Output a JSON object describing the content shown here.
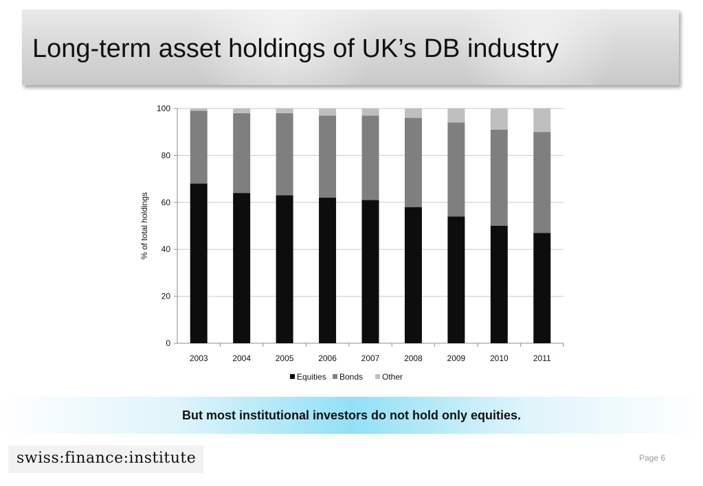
{
  "slide": {
    "title": "Long-term asset holdings of UK’s DB industry",
    "footer_message": "But most institutional investors do not hold only equities.",
    "logo_text": "swiss:finance:institute",
    "page_label": "Page 6"
  },
  "chart_data": {
    "type": "bar",
    "stacked": true,
    "categories": [
      "2003",
      "2004",
      "2005",
      "2006",
      "2007",
      "2008",
      "2009",
      "2010",
      "2011"
    ],
    "series": [
      {
        "name": "Equities",
        "color": "#0d0d0d",
        "values": [
          68,
          64,
          63,
          62,
          61,
          58,
          54,
          50,
          47
        ]
      },
      {
        "name": "Bonds",
        "color": "#7f7f7f",
        "values": [
          31,
          34,
          35,
          35,
          36,
          38,
          40,
          41,
          43
        ]
      },
      {
        "name": "Other",
        "color": "#bfbfbf",
        "values": [
          1,
          2,
          2,
          3,
          3,
          4,
          6,
          9,
          10
        ]
      }
    ],
    "ylabel": "% of total holdings",
    "xlabel": "",
    "ylim": [
      0,
      100
    ],
    "yticks": [
      0,
      20,
      40,
      60,
      80,
      100
    ],
    "grid": true,
    "legend_position": "bottom"
  }
}
